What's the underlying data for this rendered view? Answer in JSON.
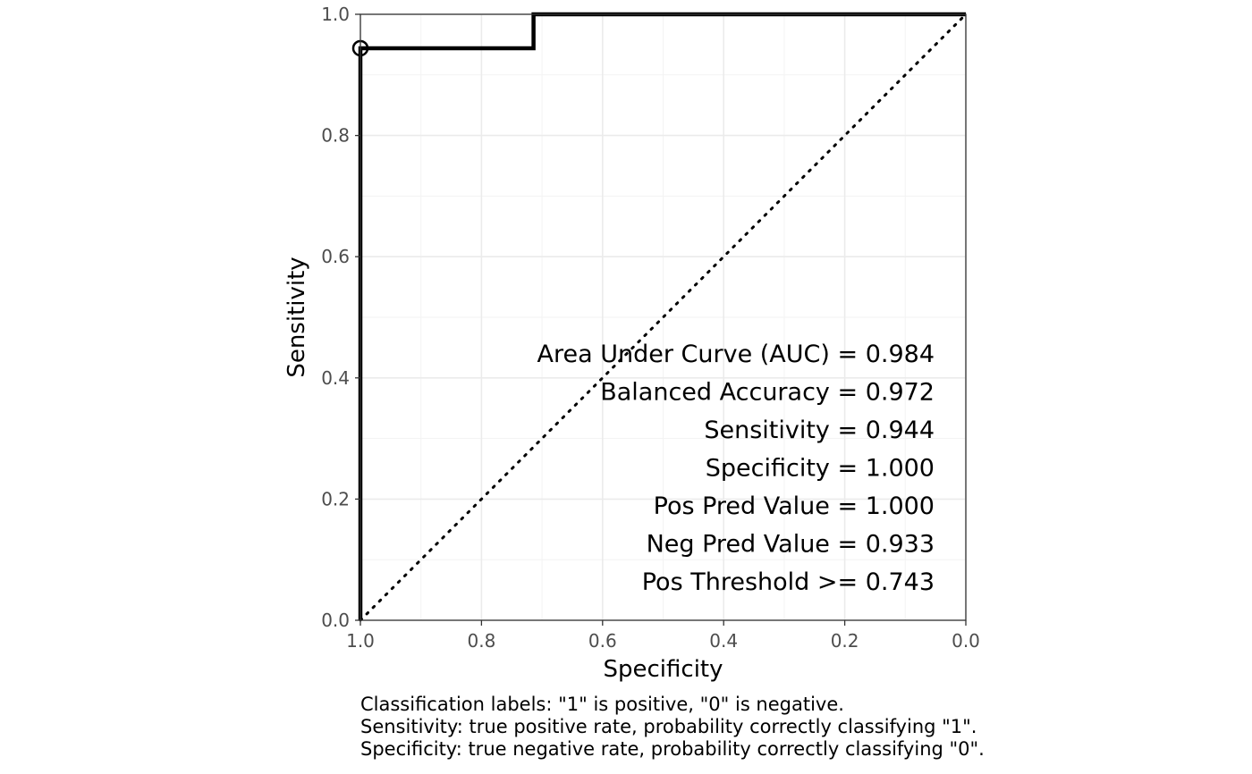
{
  "chart_data": {
    "type": "line",
    "xlabel": "Specificity",
    "ylabel": "Sensitivity",
    "xlim": [
      1.0,
      0.0
    ],
    "ylim": [
      0.0,
      1.0
    ],
    "x_reversed": true,
    "x_ticks": [
      1.0,
      0.8,
      0.6,
      0.4,
      0.2,
      0.0
    ],
    "x_tick_labels": [
      "1.0",
      "0.8",
      "0.6",
      "0.4",
      "0.2",
      "0.0"
    ],
    "y_ticks": [
      0.0,
      0.2,
      0.4,
      0.6,
      0.8,
      1.0
    ],
    "y_tick_labels": [
      "0.0",
      "0.2",
      "0.4",
      "0.6",
      "0.8",
      "1.0"
    ],
    "grid": true,
    "series": [
      {
        "specificity": [
          1.0,
          1.0,
          0.714,
          0.714,
          0.0
        ],
        "sensitivity": [
          0.0,
          0.944,
          0.944,
          1.0,
          1.0
        ]
      }
    ],
    "reference_line": {
      "specificity": [
        1.0,
        0.0
      ],
      "sensitivity": [
        0.0,
        1.0
      ],
      "style": "dotted"
    },
    "threshold_point": {
      "specificity": 1.0,
      "sensitivity": 0.944
    },
    "annotations": [
      "Area Under Curve (AUC) = 0.984",
      "Balanced Accuracy = 0.972",
      "Sensitivity = 0.944",
      "Specificity = 1.000",
      "Pos Pred Value = 1.000",
      "Neg Pred Value = 0.933",
      "Pos Threshold >= 0.743"
    ],
    "caption": [
      "Classification labels: \"1\" is positive, \"0\" is negative.",
      "Sensitivity: true positive rate, probability correctly classifying \"1\".",
      "Specificity: true negative rate, probability correctly classifying \"0\"."
    ]
  }
}
